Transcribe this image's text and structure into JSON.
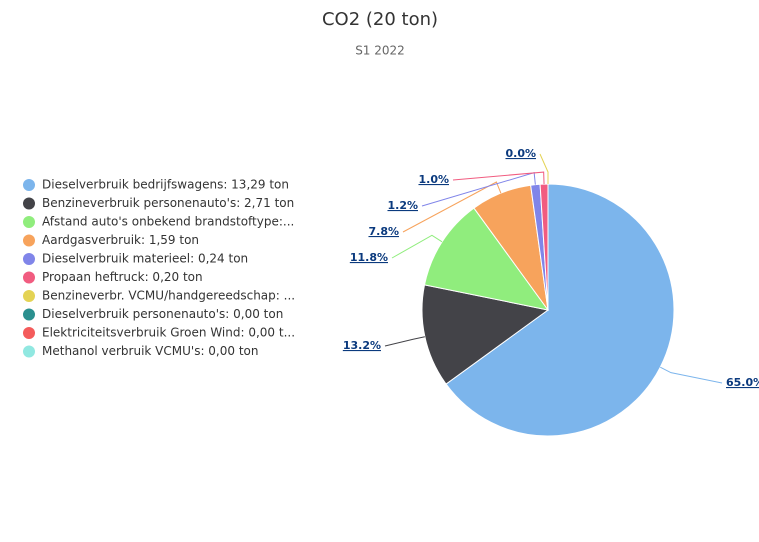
{
  "chart_data": {
    "type": "pie",
    "title": "CO2 (20 ton)",
    "subtitle": "S1 2022",
    "categories": [
      "Dieselverbruik bedrijfswagens: 13,29 ton",
      "Benzineverbruik personenauto's: 2,71 ton",
      "Afstand auto's onbekend brandstoftype:...",
      "Aardgasverbruik: 1,59 ton",
      "Dieselverbruik materieel: 0,24 ton",
      "Propaan heftruck: 0,20 ton",
      "Benzineverbr. VCMU/handgereedschap: ...",
      "Dieselverbruik personenauto's: 0,00 ton",
      "Elektriciteitsverbruik Groen Wind: 0,00 t...",
      "Methanol verbruik VCMU's: 0,00 ton"
    ],
    "values": [
      65.0,
      13.2,
      11.8,
      7.8,
      1.2,
      1.0,
      0.0,
      0.0,
      0.0,
      0.0
    ],
    "value_labels": [
      "65.0%",
      "13.2%",
      "11.8%",
      "7.8%",
      "1.2%",
      "1.0%",
      "0.0%",
      null,
      null,
      null
    ],
    "colors": [
      "#7cb5ec",
      "#434348",
      "#90ed7d",
      "#f7a35c",
      "#8085e9",
      "#f15c80",
      "#e4d354",
      "#2b908f",
      "#f45b5b",
      "#91e8e1"
    ],
    "legend": "left"
  }
}
